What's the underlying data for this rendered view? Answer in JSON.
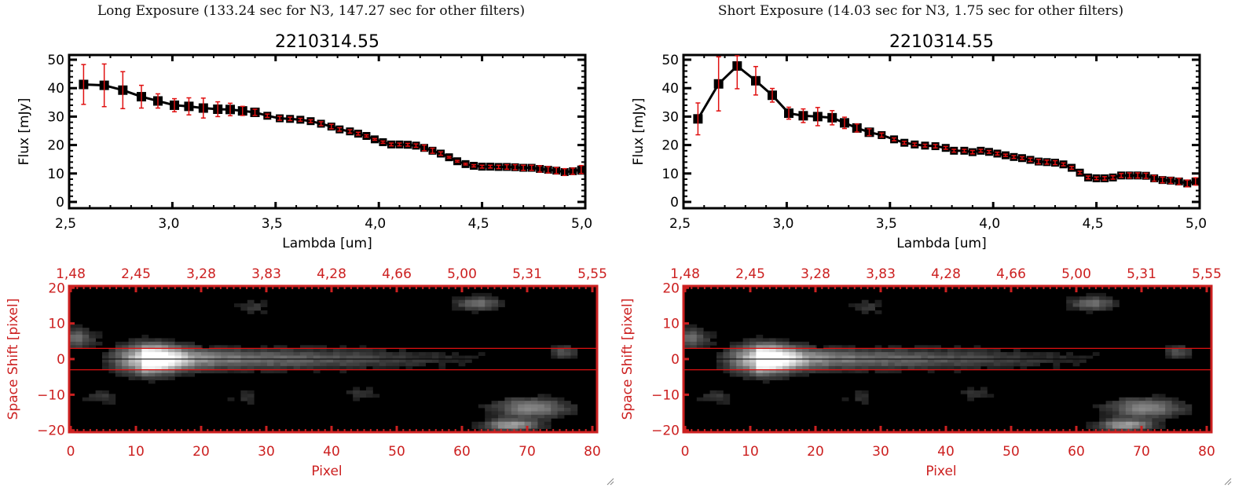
{
  "panels": [
    {
      "title": "Long Exposure (133.24 sec for N3, 147.27 sec for other filters)",
      "plot_title": "2210314.55",
      "image_panel": {
        "top_axis_ticks": [
          "1.48",
          "2.45",
          "3.28",
          "3.83",
          "4.28",
          "4.66",
          "5.00",
          "5.31",
          "5.55"
        ],
        "bottom_axis_ticks": [
          "0",
          "10",
          "20",
          "30",
          "40",
          "50",
          "60",
          "70",
          "80"
        ],
        "left_axis_ticks": [
          "20",
          "10",
          "0",
          "-10",
          "-20"
        ],
        "xlabel": "Pixel",
        "ylabel": "Space Shift [pixel]"
      }
    },
    {
      "title": "Short Exposure (14.03 sec for N3, 1.75 sec for other filters)",
      "plot_title": "2210314.55",
      "image_panel": {
        "top_axis_ticks": [
          "1.48",
          "2.45",
          "3.28",
          "3.83",
          "4.28",
          "4.66",
          "5.00",
          "5.31",
          "5.55"
        ],
        "bottom_axis_ticks": [
          "0",
          "10",
          "20",
          "30",
          "40",
          "50",
          "60",
          "70",
          "80"
        ],
        "left_axis_ticks": [
          "20",
          "10",
          "0",
          "-10",
          "-20"
        ],
        "xlabel": "Pixel",
        "ylabel": "Space Shift [pixel]"
      }
    }
  ],
  "colors": {
    "axis_red": "#cc2020",
    "errorbar": "#e01010",
    "marker": "#000000",
    "extraction_line": "#dd1010"
  },
  "chart_data": [
    {
      "type": "line",
      "title": "2210314.55",
      "subtitle": "Long Exposure (133.24 sec for N3, 147.27 sec for other filters)",
      "xlabel": "Lambda [um]",
      "ylabel": "Flux [mJy]",
      "xlim": [
        2.5,
        5.0
      ],
      "ylim": [
        0,
        50
      ],
      "xticks": [
        "2.5",
        "3.0",
        "3.5",
        "4.0",
        "4.5",
        "5.0"
      ],
      "yticks": [
        "0",
        "10",
        "20",
        "30",
        "40",
        "50"
      ],
      "grid": false,
      "series": [
        {
          "name": "flux",
          "x": [
            2.57,
            2.67,
            2.76,
            2.85,
            2.93,
            3.01,
            3.08,
            3.15,
            3.22,
            3.28,
            3.34,
            3.4,
            3.46,
            3.52,
            3.57,
            3.62,
            3.67,
            3.72,
            3.77,
            3.81,
            3.86,
            3.9,
            3.94,
            3.98,
            4.02,
            4.06,
            4.1,
            4.14,
            4.18,
            4.22,
            4.26,
            4.3,
            4.34,
            4.38,
            4.42,
            4.46,
            4.5,
            4.54,
            4.58,
            4.62,
            4.66,
            4.7,
            4.74,
            4.78,
            4.82,
            4.86,
            4.9,
            4.94,
            4.98
          ],
          "y": [
            41.3,
            41.0,
            39.3,
            37.0,
            35.5,
            34.0,
            33.6,
            33.0,
            32.6,
            32.5,
            32.0,
            31.5,
            30.3,
            29.4,
            29.2,
            28.9,
            28.4,
            27.5,
            26.5,
            25.5,
            24.8,
            24.0,
            23.2,
            22.0,
            21.0,
            20.2,
            20.2,
            20.1,
            19.8,
            19.0,
            18.0,
            17.0,
            15.7,
            14.3,
            13.3,
            12.7,
            12.4,
            12.4,
            12.3,
            12.3,
            12.2,
            12.0,
            12.0,
            11.6,
            11.3,
            11.0,
            10.5,
            10.8,
            11.4
          ],
          "yerr": [
            7.0,
            7.5,
            6.5,
            4.0,
            2.5,
            2.3,
            3.0,
            3.5,
            2.6,
            2.2,
            1.6,
            1.1,
            0.6,
            0.7,
            0.6,
            0.5,
            0.5,
            0.7,
            0.8,
            0.6,
            0.6,
            0.5,
            0.4,
            0.3,
            0.4,
            0.5,
            0.5,
            0.5,
            0.6,
            1.0,
            0.9,
            0.6,
            0.3,
            0.3,
            0.3,
            0.4,
            0.5,
            0.5,
            0.6,
            0.8,
            0.9,
            0.9,
            0.9,
            1.1,
            1.1,
            1.1,
            1.2,
            1.1,
            1.4
          ]
        }
      ]
    },
    {
      "type": "line",
      "title": "2210314.55",
      "subtitle": "Short Exposure (14.03 sec for N3, 1.75 sec for other filters)",
      "xlabel": "Lambda [um]",
      "ylabel": "Flux [mJy]",
      "xlim": [
        2.5,
        5.0
      ],
      "ylim": [
        0,
        50
      ],
      "xticks": [
        "2.5",
        "3.0",
        "3.5",
        "4.0",
        "4.5",
        "5.0"
      ],
      "yticks": [
        "0",
        "10",
        "20",
        "30",
        "40",
        "50"
      ],
      "grid": false,
      "series": [
        {
          "name": "flux",
          "x": [
            2.57,
            2.67,
            2.76,
            2.85,
            2.93,
            3.01,
            3.08,
            3.15,
            3.22,
            3.28,
            3.34,
            3.4,
            3.46,
            3.52,
            3.57,
            3.62,
            3.67,
            3.72,
            3.77,
            3.81,
            3.86,
            3.9,
            3.94,
            3.98,
            4.02,
            4.06,
            4.1,
            4.14,
            4.18,
            4.22,
            4.26,
            4.3,
            4.34,
            4.38,
            4.42,
            4.46,
            4.5,
            4.54,
            4.58,
            4.62,
            4.66,
            4.7,
            4.74,
            4.78,
            4.82,
            4.86,
            4.9,
            4.94,
            4.98
          ],
          "y": [
            29.2,
            41.5,
            47.8,
            42.6,
            37.5,
            31.2,
            30.3,
            30.0,
            29.6,
            27.8,
            26.0,
            24.5,
            23.5,
            22.0,
            20.8,
            20.2,
            19.8,
            19.6,
            19.0,
            18.0,
            18.0,
            17.5,
            18.0,
            17.6,
            17.0,
            16.4,
            15.8,
            15.4,
            14.8,
            14.2,
            14.0,
            13.8,
            13.2,
            12.0,
            10.3,
            8.6,
            8.3,
            8.3,
            8.6,
            9.3,
            9.3,
            9.3,
            9.2,
            8.3,
            7.7,
            7.5,
            7.2,
            6.5,
            7.2
          ]
        }
      ]
    }
  ]
}
